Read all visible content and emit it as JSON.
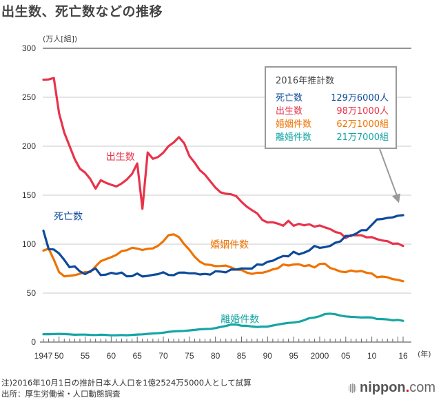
{
  "title": "出生数、死亡数などの推移",
  "notes": {
    "note": "注)2016年10月1日の推計日本人人口を1億2524万5000人として試算",
    "source": "出所：厚生労働省・人口動態調査"
  },
  "logo": {
    "name": "nippon",
    "dot": ".",
    "tld": "com"
  },
  "legend_box": {
    "title": "2016年推計数",
    "rows": [
      {
        "label": "死亡数",
        "value": "129万6000人",
        "color": "#0d4a9a"
      },
      {
        "label": "出生数",
        "value": "98万1000人",
        "color": "#e8334a"
      },
      {
        "label": "婚姻件数",
        "value": "62万1000組",
        "color": "#ef7200"
      },
      {
        "label": "離婚件数",
        "value": "21万7000組",
        "color": "#16a5a5"
      }
    ]
  },
  "chart_data": {
    "type": "line",
    "title": "出生数、死亡数などの推移",
    "xlabel": "(年)",
    "ylabel": "(万人[組])",
    "ylim": [
      0,
      300
    ],
    "yticks": [
      0,
      50,
      100,
      150,
      200,
      250,
      300
    ],
    "xlim": [
      1947,
      2016
    ],
    "xtick_values": [
      1947,
      1950,
      1955,
      1960,
      1965,
      1970,
      1975,
      1980,
      1985,
      1990,
      1995,
      2000,
      2005,
      2010,
      2016
    ],
    "xtick_labels": [
      "1947",
      "50",
      "55",
      "60",
      "65",
      "70",
      "75",
      "80",
      "85",
      "90",
      "95",
      "2000",
      "05",
      "10",
      "16"
    ],
    "grid": true,
    "x": [
      1947,
      1948,
      1949,
      1950,
      1951,
      1952,
      1953,
      1954,
      1955,
      1956,
      1957,
      1958,
      1959,
      1960,
      1961,
      1962,
      1963,
      1964,
      1965,
      1966,
      1967,
      1968,
      1969,
      1970,
      1971,
      1972,
      1973,
      1974,
      1975,
      1976,
      1977,
      1978,
      1979,
      1980,
      1981,
      1982,
      1983,
      1984,
      1985,
      1986,
      1987,
      1988,
      1989,
      1990,
      1991,
      1992,
      1993,
      1994,
      1995,
      1996,
      1997,
      1998,
      1999,
      2000,
      2001,
      2002,
      2003,
      2004,
      2005,
      2006,
      2007,
      2008,
      2009,
      2010,
      2011,
      2012,
      2013,
      2014,
      2015,
      2016
    ],
    "series": [
      {
        "name": "出生数",
        "color": "#e8334a",
        "label_year": 1959,
        "label_value": 186,
        "values": [
          267.9,
          268.2,
          269.7,
          233.8,
          213.8,
          200.5,
          186.8,
          177.0,
          173.1,
          166.5,
          156.7,
          165.3,
          162.6,
          160.6,
          158.9,
          161.9,
          166.0,
          171.7,
          182.4,
          136.1,
          193.6,
          187.2,
          189.0,
          193.4,
          200.1,
          203.9,
          209.2,
          203.0,
          190.1,
          183.3,
          175.5,
          170.9,
          164.2,
          157.7,
          152.9,
          151.5,
          150.9,
          149.0,
          143.2,
          138.3,
          134.7,
          131.4,
          124.7,
          122.2,
          122.3,
          120.9,
          118.8,
          123.8,
          118.7,
          120.7,
          119.2,
          120.3,
          117.8,
          119.1,
          117.1,
          115.4,
          112.4,
          111.1,
          106.3,
          109.3,
          109.0,
          109.1,
          107.0,
          107.1,
          105.1,
          103.7,
          103.0,
          100.4,
          100.6,
          98.1
        ]
      },
      {
        "name": "死亡数",
        "color": "#0d4a9a",
        "label_year": 1949,
        "label_value": 125,
        "values": [
          113.8,
          95.1,
          94.5,
          90.5,
          83.9,
          76.5,
          77.3,
          72.1,
          69.4,
          72.4,
          75.2,
          68.4,
          68.9,
          70.7,
          69.6,
          71.0,
          67.1,
          67.3,
          70.0,
          67.0,
          67.6,
          68.6,
          69.4,
          71.3,
          68.5,
          68.3,
          70.9,
          71.0,
          70.2,
          70.3,
          69.0,
          69.6,
          68.9,
          72.3,
          72.0,
          71.2,
          74.0,
          74.0,
          75.2,
          75.1,
          75.1,
          79.3,
          78.9,
          82.0,
          83.0,
          85.7,
          87.9,
          87.6,
          92.2,
          89.6,
          91.3,
          93.6,
          98.2,
          96.2,
          97.0,
          98.2,
          101.5,
          102.9,
          108.4,
          108.4,
          110.8,
          114.2,
          114.2,
          119.7,
          125.3,
          125.6,
          126.8,
          127.3,
          129.0,
          129.6
        ]
      },
      {
        "name": "婚姻件数",
        "color": "#ef7200",
        "label_year": 1979,
        "label_value": 96,
        "values": [
          93.4,
          95.4,
          84.2,
          71.5,
          67.2,
          67.7,
          68.3,
          69.7,
          71.5,
          71.5,
          77.3,
          82.6,
          84.7,
          86.6,
          89.0,
          92.9,
          93.8,
          96.3,
          95.5,
          94.0,
          95.3,
          95.6,
          98.4,
          102.9,
          109.2,
          110.0,
          107.2,
          100.0,
          94.2,
          87.2,
          82.1,
          79.3,
          78.8,
          77.5,
          77.7,
          78.1,
          76.3,
          74.0,
          73.6,
          71.0,
          69.6,
          70.8,
          70.8,
          72.2,
          74.2,
          75.4,
          79.3,
          78.2,
          79.2,
          79.5,
          77.6,
          78.5,
          76.2,
          79.8,
          80.0,
          75.7,
          74.0,
          72.0,
          71.4,
          73.1,
          72.0,
          72.6,
          70.8,
          70.0,
          66.2,
          66.9,
          66.1,
          64.3,
          63.5,
          62.1
        ]
      },
      {
        "name": "離婚件数",
        "color": "#16a5a5",
        "label_year": 1981,
        "label_value": 20,
        "values": [
          8.0,
          8.0,
          8.2,
          8.4,
          8.2,
          7.9,
          7.5,
          7.6,
          7.6,
          7.3,
          7.2,
          7.5,
          7.3,
          6.9,
          7.0,
          7.2,
          7.0,
          7.3,
          7.7,
          7.9,
          8.4,
          8.8,
          9.1,
          9.6,
          10.4,
          10.9,
          11.2,
          11.4,
          11.9,
          12.4,
          13.0,
          13.3,
          13.5,
          14.2,
          15.4,
          16.4,
          17.9,
          17.9,
          16.7,
          16.6,
          15.9,
          15.4,
          15.8,
          15.8,
          16.9,
          17.9,
          18.8,
          19.6,
          19.9,
          20.7,
          22.3,
          24.4,
          25.1,
          26.4,
          28.6,
          29.0,
          28.4,
          27.0,
          26.2,
          25.8,
          25.5,
          25.1,
          25.3,
          25.1,
          23.6,
          23.5,
          23.1,
          22.2,
          22.6,
          21.7
        ]
      }
    ],
    "annotation": {
      "text": "2016年推計数",
      "arrow_to_year": 2016
    }
  }
}
